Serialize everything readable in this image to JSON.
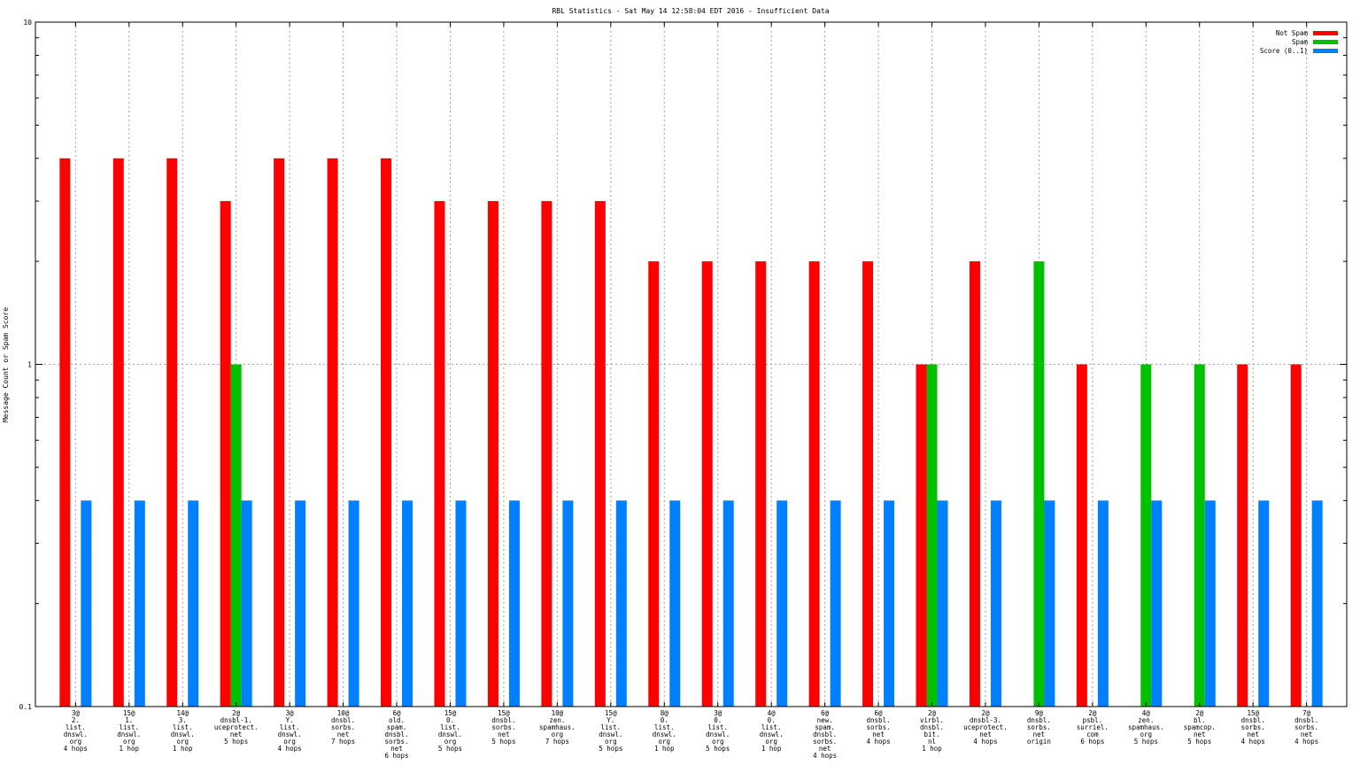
{
  "chart_data": {
    "type": "bar",
    "title": "RBL Statistics - Sat May 14 12:58:04 EDT 2016 - Insufficient Data",
    "ylabel": "Message Count or Spam Score",
    "xlabel": "",
    "yscale": "log",
    "ylim": [
      0.1,
      10
    ],
    "yticks": [
      "0.1",
      "1",
      "10"
    ],
    "grid": true,
    "legend_position": "top-right",
    "categories": [
      "3@\n2.\nlist.\ndnswl.\norg\n4 hops",
      "15@\n1.\nlist.\ndnswl.\norg\n1 hop",
      "14@\n3.\nlist.\ndnswl.\norg\n1 hop",
      "2@\ndnsbl-1.\nuceprotect.\nnet\n5 hops",
      "3@\nY.\nlist.\ndnswl.\norg\n4 hops",
      "10@\ndnsbl.\nsorbs.\nnet\n7 hops",
      "6@\nold.\nspam.\ndnsbl.\nsorbs.\nnet\n6 hops",
      "15@\n0.\nlist.\ndnswl.\norg\n5 hops",
      "15@\ndnsbl.\nsorbs.\nnet\n5 hops",
      "10@\nzen.\nspamhaus.\norg\n7 hops",
      "15@\nY.\nlist.\ndnswl.\norg\n5 hops",
      "8@\n0.\nlist.\ndnswl.\norg\n1 hop",
      "3@\n0.\nlist.\ndnswl.\norg\n5 hops",
      "4@\n0.\nlist.\ndnswl.\norg\n1 hop",
      "6@\nnew.\nspam.\ndnsbl.\nsorbs.\nnet\n4 hops",
      "6@\ndnsbl.\nsorbs.\nnet\n4 hops",
      "2@\nvirbl.\ndnsbl.\nbit.\nnl\n1 hop",
      "2@\ndnsbl-3.\nuceprotect.\nnet\n4 hops",
      "9@\ndnsbl.\nsorbs.\nnet\norigin",
      "2@\npsbl.\nsurriel.\ncom\n6 hops",
      "4@\nzen.\nspamhaus.\norg\n5 hops",
      "2@\nbl.\nspamcop.\nnet\n5 hops",
      "15@\ndnsbl.\nsorbs.\nnet\n4 hops",
      "7@\ndnsbl.\nsorbs.\nnet\n4 hops"
    ],
    "series": [
      {
        "name": "Not Spam",
        "color": "#ff0000",
        "values": [
          4,
          4,
          4,
          3,
          4,
          4,
          4,
          3,
          3,
          3,
          3,
          2,
          2,
          2,
          2,
          2,
          1,
          2,
          0,
          1,
          0,
          0,
          1,
          1
        ]
      },
      {
        "name": "Spam",
        "color": "#00c000",
        "values": [
          0,
          0,
          0,
          1,
          0,
          0,
          0,
          0,
          0,
          0,
          0,
          0,
          0,
          0,
          0,
          0,
          1,
          0,
          2,
          0,
          1,
          1,
          0,
          0
        ]
      },
      {
        "name": "Score (0..1)",
        "color": "#0080ff",
        "values": [
          0.4,
          0.4,
          0.4,
          0.4,
          0.4,
          0.4,
          0.4,
          0.4,
          0.4,
          0.4,
          0.4,
          0.4,
          0.4,
          0.4,
          0.4,
          0.4,
          0.4,
          0.4,
          0.4,
          0.4,
          0.4,
          0.4,
          0.4,
          0.4
        ]
      }
    ]
  }
}
